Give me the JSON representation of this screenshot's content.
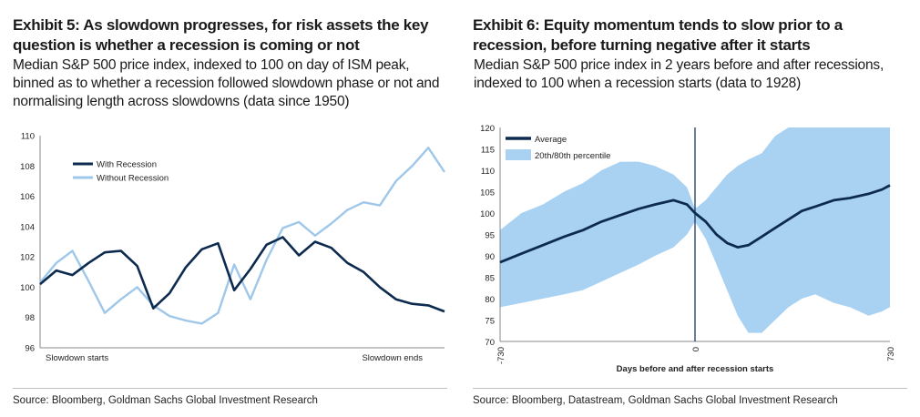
{
  "left": {
    "title": "Exhibit 5: As slowdown progresses, for risk assets the key question is whether a recession is coming or not",
    "subtitle": "Median S&P 500 price index, indexed to 100 on day of ISM peak, binned as to whether a recession followed slowdown phase or not and normalising length across slowdowns (data since 1950)",
    "source": "Source: Bloomberg, Goldman Sachs Global Investment Research",
    "colors": {
      "with_recession": "#0d2a4f",
      "without_recession": "#9ec7ea"
    }
  },
  "right": {
    "title": "Exhibit 6: Equity momentum tends to slow prior to a recession, before turning negative after it starts",
    "subtitle": "Median S&P 500 price index in 2 years before and after recessions, indexed to 100 when a recession starts (data to 1928)",
    "source": "Source: Bloomberg, Datastream, Goldman Sachs Global Investment Research",
    "colors": {
      "average": "#0d2a4f",
      "band": "#a9d2f2",
      "vline": "#0d2a4f"
    }
  },
  "chart_data": [
    {
      "type": "line",
      "ylim": [
        96,
        110
      ],
      "yticks": [
        96,
        98,
        100,
        102,
        104,
        106,
        108,
        110
      ],
      "xlabel": "",
      "x_tick_labels": [
        "Slowdown starts",
        "Slowdown ends"
      ],
      "x": [
        0,
        0.04,
        0.08,
        0.12,
        0.16,
        0.2,
        0.24,
        0.28,
        0.32,
        0.36,
        0.4,
        0.44,
        0.48,
        0.52,
        0.56,
        0.6,
        0.64,
        0.68,
        0.72,
        0.76,
        0.8,
        0.84,
        0.88,
        0.92,
        0.96,
        1.0
      ],
      "legend_position": "top-left",
      "series": [
        {
          "name": "With Recession",
          "values": [
            100.2,
            101.1,
            100.8,
            101.6,
            102.3,
            102.4,
            101.4,
            98.6,
            99.6,
            101.3,
            102.5,
            102.9,
            99.8,
            101.2,
            102.8,
            103.3,
            102.1,
            103.0,
            102.6,
            101.6,
            101.0,
            100.0,
            99.2,
            98.9,
            98.8,
            98.4
          ]
        },
        {
          "name": "Without Recession",
          "values": [
            100.3,
            101.6,
            102.4,
            100.4,
            98.3,
            99.2,
            100.0,
            98.8,
            98.1,
            97.8,
            97.6,
            98.3,
            101.5,
            99.2,
            101.8,
            103.9,
            104.3,
            103.4,
            104.2,
            105.1,
            105.6,
            105.4,
            107.0,
            108.0,
            109.2,
            107.6
          ]
        }
      ]
    },
    {
      "type": "area",
      "ylim": [
        70,
        120
      ],
      "yticks": [
        70,
        75,
        80,
        85,
        90,
        95,
        100,
        105,
        110,
        115,
        120
      ],
      "xlim": [
        -730,
        730
      ],
      "xticks": [
        -730,
        0,
        730
      ],
      "xlabel": "Days before and after recession starts",
      "legend_position": "top-left",
      "series": [
        {
          "name": "Average",
          "x": [
            -730,
            -650,
            -570,
            -490,
            -420,
            -350,
            -280,
            -210,
            -150,
            -80,
            -30,
            0,
            40,
            80,
            120,
            160,
            200,
            250,
            300,
            350,
            400,
            450,
            520,
            580,
            650,
            700,
            730
          ],
          "values": [
            88.5,
            90.5,
            92.5,
            94.5,
            96.0,
            98.0,
            99.5,
            101.0,
            102.0,
            103.0,
            102.0,
            100.0,
            98.0,
            95.0,
            93.0,
            92.0,
            92.5,
            94.5,
            96.5,
            98.5,
            100.5,
            101.5,
            103.0,
            103.5,
            104.5,
            105.5,
            106.5
          ]
        },
        {
          "name": "20th/80th percentile",
          "x": [
            -730,
            -650,
            -570,
            -490,
            -420,
            -350,
            -280,
            -210,
            -150,
            -80,
            -30,
            0,
            40,
            80,
            120,
            160,
            200,
            250,
            300,
            350,
            400,
            450,
            520,
            580,
            650,
            700,
            730
          ],
          "lower": [
            78.0,
            79.0,
            80.0,
            81.0,
            82.0,
            84.0,
            86.0,
            88.0,
            90.0,
            92.0,
            95.0,
            98.0,
            94.0,
            88.0,
            82.0,
            76.0,
            72.0,
            72.0,
            75.0,
            78.0,
            80.0,
            81.0,
            79.0,
            78.0,
            76.0,
            77.0,
            78.0
          ],
          "upper": [
            96.0,
            100.0,
            102.0,
            105.0,
            107.0,
            110.0,
            112.0,
            112.0,
            111.0,
            109.0,
            106.0,
            101.0,
            103.0,
            106.0,
            109.0,
            111.0,
            112.5,
            114.0,
            118.0,
            120.0,
            120.0,
            120.0,
            120.0,
            120.0,
            120.0,
            120.0,
            120.0
          ]
        }
      ]
    }
  ]
}
